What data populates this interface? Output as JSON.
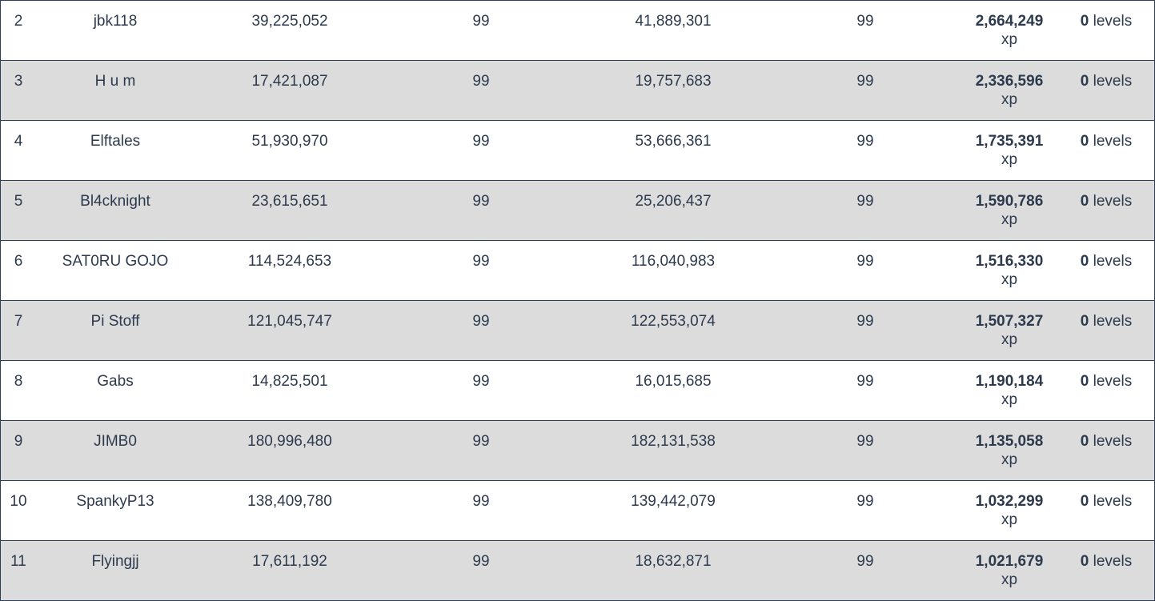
{
  "table": {
    "rows": [
      {
        "rank": "2",
        "name": "jbk118",
        "xp_start": "39,225,052",
        "level_start": "99",
        "xp_end": "41,889,301",
        "level_end": "99",
        "gain": "2,664,249",
        "gain_unit": "xp",
        "levels": "0",
        "levels_unit": "levels"
      },
      {
        "rank": "3",
        "name": "H u m",
        "xp_start": "17,421,087",
        "level_start": "99",
        "xp_end": "19,757,683",
        "level_end": "99",
        "gain": "2,336,596",
        "gain_unit": "xp",
        "levels": "0",
        "levels_unit": "levels"
      },
      {
        "rank": "4",
        "name": "Elftales",
        "xp_start": "51,930,970",
        "level_start": "99",
        "xp_end": "53,666,361",
        "level_end": "99",
        "gain": "1,735,391",
        "gain_unit": "xp",
        "levels": "0",
        "levels_unit": "levels"
      },
      {
        "rank": "5",
        "name": "Bl4cknight",
        "xp_start": "23,615,651",
        "level_start": "99",
        "xp_end": "25,206,437",
        "level_end": "99",
        "gain": "1,590,786",
        "gain_unit": "xp",
        "levels": "0",
        "levels_unit": "levels"
      },
      {
        "rank": "6",
        "name": "SAT0RU GOJO",
        "xp_start": "114,524,653",
        "level_start": "99",
        "xp_end": "116,040,983",
        "level_end": "99",
        "gain": "1,516,330",
        "gain_unit": "xp",
        "levels": "0",
        "levels_unit": "levels"
      },
      {
        "rank": "7",
        "name": "Pi Stoff",
        "xp_start": "121,045,747",
        "level_start": "99",
        "xp_end": "122,553,074",
        "level_end": "99",
        "gain": "1,507,327",
        "gain_unit": "xp",
        "levels": "0",
        "levels_unit": "levels"
      },
      {
        "rank": "8",
        "name": "Gabs",
        "xp_start": "14,825,501",
        "level_start": "99",
        "xp_end": "16,015,685",
        "level_end": "99",
        "gain": "1,190,184",
        "gain_unit": "xp",
        "levels": "0",
        "levels_unit": "levels"
      },
      {
        "rank": "9",
        "name": "JIMB0",
        "xp_start": "180,996,480",
        "level_start": "99",
        "xp_end": "182,131,538",
        "level_end": "99",
        "gain": "1,135,058",
        "gain_unit": "xp",
        "levels": "0",
        "levels_unit": "levels"
      },
      {
        "rank": "10",
        "name": "SpankyP13",
        "xp_start": "138,409,780",
        "level_start": "99",
        "xp_end": "139,442,079",
        "level_end": "99",
        "gain": "1,032,299",
        "gain_unit": "xp",
        "levels": "0",
        "levels_unit": "levels"
      },
      {
        "rank": "11",
        "name": "Flyingjj",
        "xp_start": "17,611,192",
        "level_start": "99",
        "xp_end": "18,632,871",
        "level_end": "99",
        "gain": "1,021,679",
        "gain_unit": "xp",
        "levels": "0",
        "levels_unit": "levels"
      }
    ]
  },
  "colors": {
    "text": "#2d3a4d",
    "row_alt_bg": "#dcdcdc",
    "row_bg": "#ffffff",
    "border": "#2f3e57"
  }
}
